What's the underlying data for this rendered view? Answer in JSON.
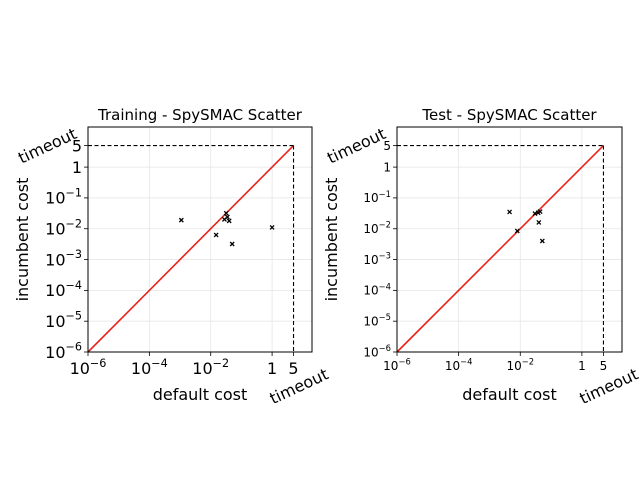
{
  "chart_data": [
    {
      "type": "scatter",
      "title": "Training - SpySMAC Scatter",
      "xlabel": "default cost",
      "ylabel": "incumbent cost",
      "scale": "log",
      "xlim": [
        1e-06,
        20
      ],
      "ylim": [
        1e-06,
        20
      ],
      "xticks": [
        {
          "v": 1e-06,
          "label": "10^-6"
        },
        {
          "v": 0.0001,
          "label": "10^-4"
        },
        {
          "v": 0.01,
          "label": "10^-2"
        },
        {
          "v": 1,
          "label": "1"
        },
        {
          "v": 5,
          "label": "5"
        }
      ],
      "yticks": [
        {
          "v": 1e-06,
          "label": "10^-6"
        },
        {
          "v": 1e-05,
          "label": "10^-5"
        },
        {
          "v": 0.0001,
          "label": "10^-4"
        },
        {
          "v": 0.001,
          "label": "10^-3"
        },
        {
          "v": 0.01,
          "label": "10^-2"
        },
        {
          "v": 0.1,
          "label": "10^-1"
        },
        {
          "v": 1,
          "label": "1"
        },
        {
          "v": 5,
          "label": "5"
        }
      ],
      "timeout_label": "timeout",
      "timeout": 5,
      "grid": true,
      "diagonal_color": "#e8221a",
      "points": [
        {
          "x": 0.0011,
          "y": 0.019
        },
        {
          "x": 0.015,
          "y": 0.0063
        },
        {
          "x": 0.028,
          "y": 0.02
        },
        {
          "x": 0.032,
          "y": 0.032
        },
        {
          "x": 0.035,
          "y": 0.024
        },
        {
          "x": 0.04,
          "y": 0.018
        },
        {
          "x": 0.05,
          "y": 0.0032
        },
        {
          "x": 1.0,
          "y": 0.011
        }
      ]
    },
    {
      "type": "scatter",
      "title": "Test - SpySMAC Scatter",
      "xlabel": "default cost",
      "ylabel": "incumbent cost",
      "scale": "log",
      "xlim": [
        1e-06,
        20
      ],
      "ylim": [
        1e-06,
        20
      ],
      "xticks": [
        {
          "v": 1e-06,
          "label": "10^-6"
        },
        {
          "v": 0.0001,
          "label": "10^-4"
        },
        {
          "v": 0.01,
          "label": "10^-2"
        },
        {
          "v": 1,
          "label": "1"
        },
        {
          "v": 5,
          "label": "5"
        }
      ],
      "yticks": [
        {
          "v": 1e-06,
          "label": "10^-6"
        },
        {
          "v": 1e-05,
          "label": "10^-5"
        },
        {
          "v": 0.0001,
          "label": "10^-4"
        },
        {
          "v": 0.001,
          "label": "10^-3"
        },
        {
          "v": 0.01,
          "label": "10^-2"
        },
        {
          "v": 0.1,
          "label": "10^-1"
        },
        {
          "v": 1,
          "label": "1"
        },
        {
          "v": 5,
          "label": "5"
        }
      ],
      "timeout_label": "timeout",
      "timeout": 5,
      "grid": true,
      "diagonal_color": "#e8221a",
      "points": [
        {
          "x": 0.0045,
          "y": 0.035
        },
        {
          "x": 0.008,
          "y": 0.0085
        },
        {
          "x": 0.03,
          "y": 0.031
        },
        {
          "x": 0.038,
          "y": 0.033
        },
        {
          "x": 0.044,
          "y": 0.036
        },
        {
          "x": 0.04,
          "y": 0.016
        },
        {
          "x": 0.052,
          "y": 0.004
        }
      ]
    }
  ]
}
